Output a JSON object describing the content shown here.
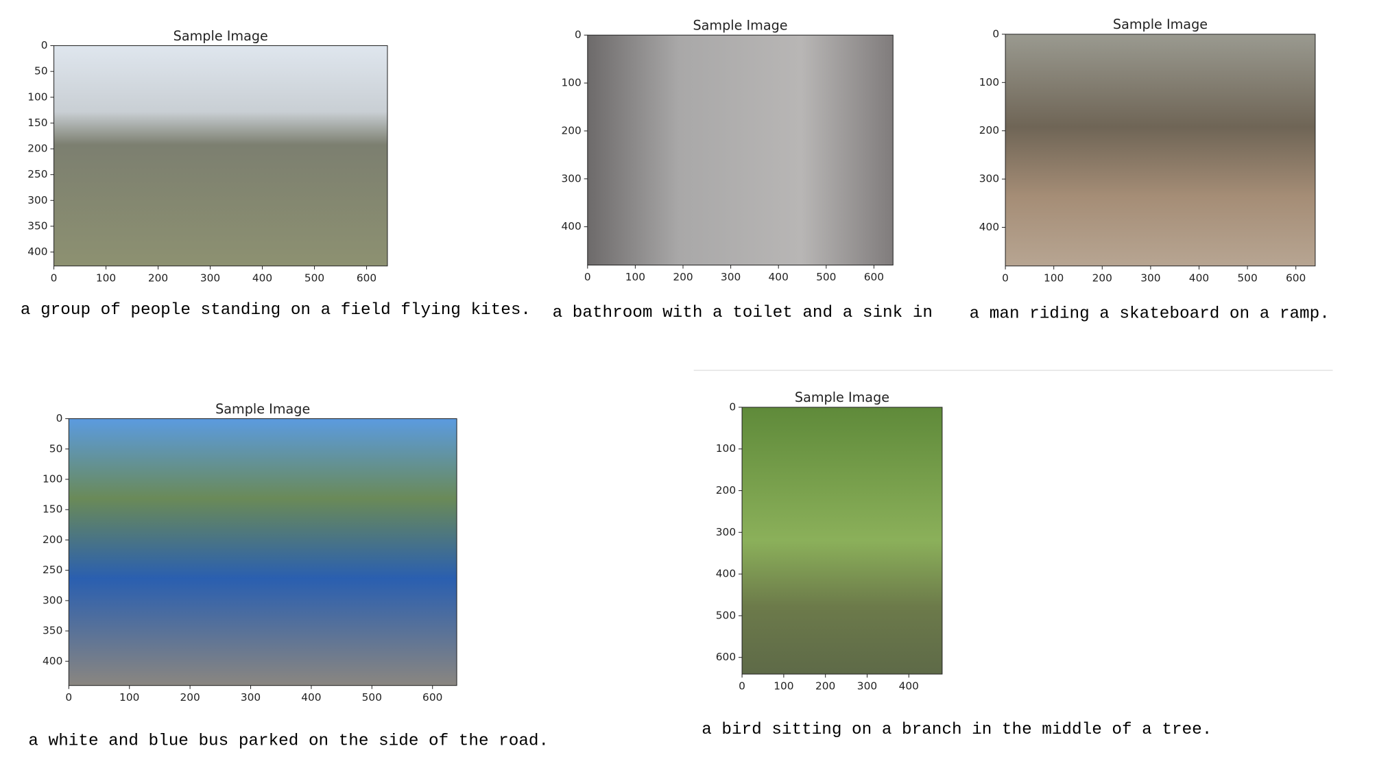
{
  "panels": [
    {
      "title": "Sample Image",
      "xlim": [
        0,
        640
      ],
      "ylim": [
        427,
        0
      ],
      "xticks": [
        0,
        100,
        200,
        300,
        400,
        500,
        600
      ],
      "yticks": [
        0,
        50,
        100,
        150,
        200,
        250,
        300,
        350,
        400
      ],
      "caption": "a group of people standing on a field flying kites."
    },
    {
      "title": "Sample Image",
      "xlim": [
        0,
        640
      ],
      "ylim": [
        480,
        0
      ],
      "xticks": [
        0,
        100,
        200,
        300,
        400,
        500,
        600
      ],
      "yticks": [
        0,
        100,
        200,
        300,
        400
      ],
      "caption": "a bathroom with a toilet and a sink in"
    },
    {
      "title": "Sample Image",
      "xlim": [
        0,
        640
      ],
      "ylim": [
        480,
        0
      ],
      "xticks": [
        0,
        100,
        200,
        300,
        400,
        500,
        600
      ],
      "yticks": [
        0,
        100,
        200,
        300,
        400
      ],
      "caption": "a man riding a skateboard on a ramp."
    },
    {
      "title": "Sample Image",
      "xlim": [
        0,
        640
      ],
      "ylim": [
        440,
        0
      ],
      "xticks": [
        0,
        100,
        200,
        300,
        400,
        500,
        600
      ],
      "yticks": [
        0,
        50,
        100,
        150,
        200,
        250,
        300,
        350,
        400
      ],
      "caption": "a white and blue bus parked on the side of the road."
    },
    {
      "title": "Sample Image",
      "xlim": [
        0,
        480
      ],
      "ylim": [
        640,
        0
      ],
      "xticks": [
        0,
        100,
        200,
        300,
        400
      ],
      "yticks": [
        0,
        100,
        200,
        300,
        400,
        500,
        600
      ],
      "caption": "a bird sitting on a branch in the middle of a tree."
    }
  ]
}
